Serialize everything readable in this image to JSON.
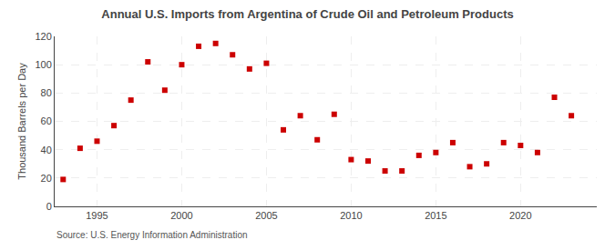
{
  "chart_data": {
    "type": "scatter",
    "title": "Annual U.S. Imports from Argentina of Crude Oil and Petroleum Products",
    "ylabel": "Thousand Barrels per Day",
    "annotations": [
      "Source: U.S. Energy Information Administration"
    ],
    "x": [
      1993,
      1994,
      1995,
      1996,
      1997,
      1998,
      1999,
      2000,
      2001,
      2002,
      2003,
      2004,
      2005,
      2006,
      2007,
      2008,
      2009,
      2010,
      2011,
      2012,
      2013,
      2014,
      2015,
      2016,
      2017,
      2018,
      2019,
      2020,
      2021,
      2022,
      2023
    ],
    "values": [
      19,
      41,
      46,
      57,
      75,
      102,
      82,
      100,
      113,
      115,
      107,
      97,
      101,
      54,
      64,
      47,
      65,
      33,
      32,
      25,
      25,
      36,
      38,
      45,
      28,
      30,
      45,
      43,
      38,
      77,
      64
    ],
    "color": "#cc0000",
    "marker": "square",
    "xlim": [
      1992.5,
      2024.5
    ],
    "xticks": [
      1995,
      2000,
      2005,
      2010,
      2015,
      2020
    ],
    "ylim": [
      0,
      120
    ],
    "yticks": [
      0,
      20,
      40,
      60,
      80,
      100,
      120
    ],
    "grid": true
  }
}
